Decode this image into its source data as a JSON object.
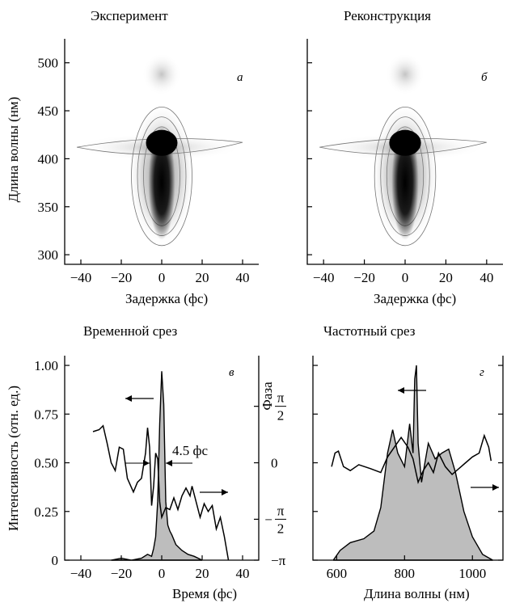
{
  "chart_data": [
    {
      "id": "a",
      "type": "heatmap",
      "title": "Эксперимент",
      "panel_label": "а",
      "xlabel": "Задержка (фс)",
      "ylabel": "Длина волны (нм)",
      "xlim": [
        -48,
        48
      ],
      "ylim": [
        290,
        525
      ],
      "xticks": [
        -40,
        -20,
        0,
        20,
        40
      ],
      "yticks": [
        300,
        350,
        400,
        450,
        500
      ],
      "core_center": {
        "x": 0,
        "y": 400
      },
      "core_width_fs": 3,
      "core_extent_nm": [
        320,
        430
      ],
      "wing_center_nm": 412,
      "wing_extent_fs": [
        -42,
        40
      ],
      "top_lobe_nm": 488
    },
    {
      "id": "b",
      "type": "heatmap",
      "title": "Реконструкция",
      "panel_label": "б",
      "xlabel": "Задержка (фс)",
      "ylabel": "",
      "xlim": [
        -48,
        48
      ],
      "ylim": [
        290,
        525
      ],
      "xticks": [
        -40,
        -20,
        0,
        20,
        40
      ],
      "yticks": [
        300,
        350,
        400,
        450,
        500
      ],
      "core_center": {
        "x": 0,
        "y": 400
      },
      "core_width_fs": 3,
      "core_extent_nm": [
        320,
        430
      ],
      "wing_center_nm": 412,
      "wing_extent_fs": [
        -42,
        40
      ],
      "top_lobe_nm": 488
    },
    {
      "id": "c",
      "type": "line",
      "title": "Временной срез",
      "panel_label": "в",
      "xlabel": "Время (фс)",
      "ylabel": "Интенсивность (отн. ед.)",
      "ylabel_right": "Фаза",
      "xlim": [
        -48,
        48
      ],
      "ylim": [
        0,
        1.05
      ],
      "xticks": [
        -40,
        -20,
        0,
        20,
        40
      ],
      "yticks": [
        0,
        0.25,
        0.5,
        0.75,
        1.0
      ],
      "ytick_labels": [
        "0",
        "0.25",
        "0.50",
        "0.75",
        "1.00"
      ],
      "right_ticks": [
        {
          "label": "π/2",
          "value": 0.79
        },
        {
          "label": "0",
          "value": 0.5
        },
        {
          "label": "−π/2",
          "value": 0.21
        },
        {
          "label": "−π",
          "value": 0
        }
      ],
      "annotation": "4.5 фс",
      "series": [
        {
          "kind": "intensity-filled",
          "x": [
            -25,
            -20,
            -15,
            -10,
            -7,
            -5,
            -4,
            -3,
            -2,
            -1,
            0,
            1,
            2,
            3,
            4,
            5,
            7,
            10,
            13,
            16,
            20
          ],
          "y": [
            0.0,
            0.01,
            0.0,
            0.01,
            0.03,
            0.02,
            0.06,
            0.12,
            0.3,
            0.7,
            0.97,
            0.8,
            0.3,
            0.18,
            0.15,
            0.13,
            0.08,
            0.05,
            0.03,
            0.02,
            0.0
          ]
        },
        {
          "kind": "phase",
          "x": [
            -34,
            -31,
            -29,
            -27,
            -25,
            -23,
            -21,
            -19,
            -17,
            -14,
            -12,
            -10,
            -8,
            -7,
            -6,
            -5,
            -4,
            -3,
            -2,
            -1,
            0,
            2,
            4,
            6,
            8,
            10,
            12,
            14,
            15,
            17,
            19,
            21,
            23,
            25,
            27,
            29,
            31,
            33
          ],
          "y": [
            0.66,
            0.67,
            0.69,
            0.6,
            0.5,
            0.46,
            0.58,
            0.57,
            0.42,
            0.35,
            0.4,
            0.42,
            0.55,
            0.68,
            0.58,
            0.28,
            0.38,
            0.55,
            0.52,
            0.3,
            0.22,
            0.27,
            0.26,
            0.32,
            0.26,
            0.33,
            0.37,
            0.33,
            0.38,
            0.3,
            0.22,
            0.29,
            0.25,
            0.28,
            0.16,
            0.22,
            0.12,
            0.0
          ]
        }
      ]
    },
    {
      "id": "d",
      "type": "area",
      "title": "Частотный срез",
      "panel_label": "г",
      "xlabel": "Длина волны (нм)",
      "ylabel": "",
      "xlim": [
        530,
        1090
      ],
      "ylim": [
        0,
        1.05
      ],
      "xticks": [
        600,
        800,
        1000
      ],
      "series": [
        {
          "kind": "intensity-filled",
          "x": [
            590,
            610,
            640,
            680,
            710,
            730,
            750,
            765,
            780,
            800,
            815,
            825,
            830,
            835,
            840,
            850,
            870,
            890,
            910,
            930,
            950,
            975,
            1000,
            1030,
            1060
          ],
          "y": [
            0.0,
            0.05,
            0.09,
            0.11,
            0.15,
            0.27,
            0.55,
            0.67,
            0.55,
            0.48,
            0.7,
            0.55,
            0.93,
            1.0,
            0.6,
            0.4,
            0.6,
            0.52,
            0.55,
            0.57,
            0.45,
            0.25,
            0.12,
            0.03,
            0.0
          ]
        },
        {
          "kind": "phase",
          "x": [
            585,
            595,
            605,
            620,
            640,
            665,
            700,
            730,
            750,
            770,
            790,
            810,
            825,
            840,
            855,
            870,
            885,
            900,
            920,
            940,
            960,
            980,
            1000,
            1020,
            1035,
            1048,
            1055
          ],
          "y": [
            0.48,
            0.55,
            0.56,
            0.48,
            0.46,
            0.49,
            0.47,
            0.45,
            0.53,
            0.58,
            0.63,
            0.58,
            0.52,
            0.4,
            0.46,
            0.5,
            0.45,
            0.55,
            0.48,
            0.44,
            0.47,
            0.5,
            0.53,
            0.55,
            0.64,
            0.58,
            0.51
          ]
        }
      ]
    }
  ]
}
